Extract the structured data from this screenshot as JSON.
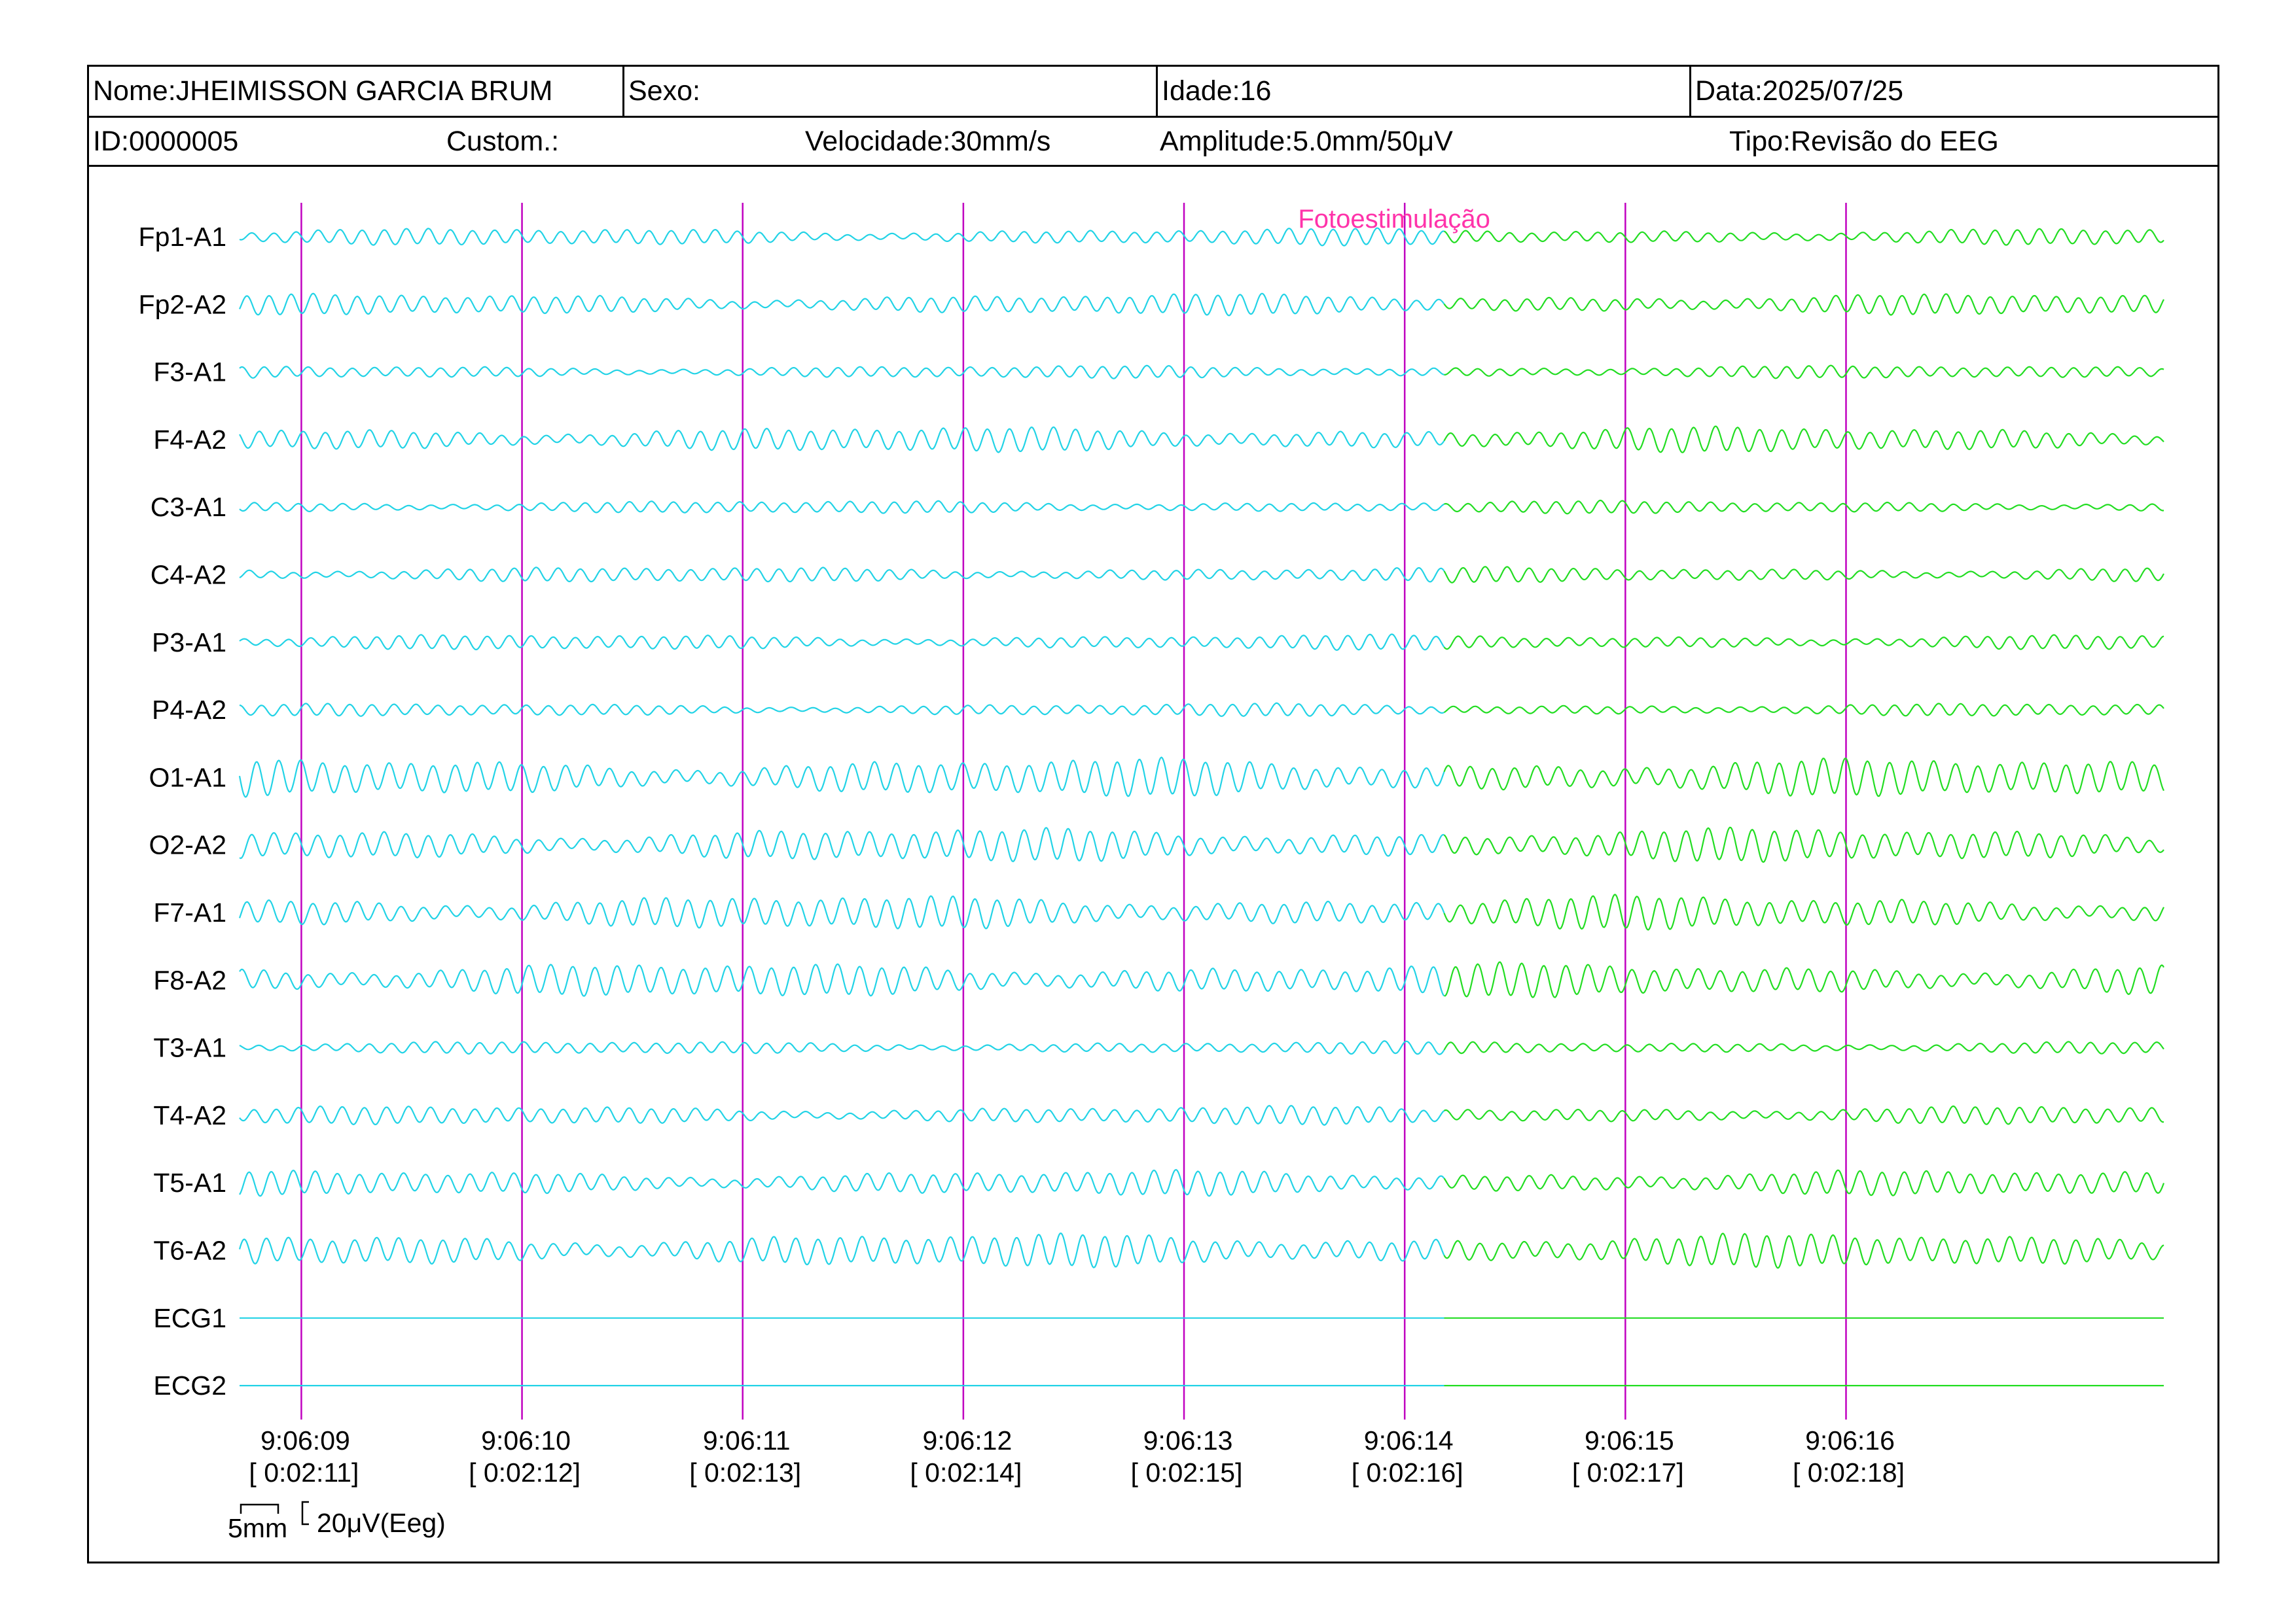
{
  "header": {
    "nome": "Nome:JHEIMISSON GARCIA BRUM",
    "sexo": "Sexo:",
    "idade": "Idade:16",
    "data": "Data:2025/07/25",
    "id": "ID:0000005",
    "custom": "Custom.:",
    "velocidade": "Velocidade:30mm/s",
    "amplitude": "Amplitude:5.0mm/50μV",
    "tipo": "Tipo:Revisão do EEG"
  },
  "colors": {
    "trace_before": "#22d3e6",
    "trace_after": "#22dd22",
    "marker_line": "#c000c0",
    "event_text": "#ff33aa",
    "frame": "#000000"
  },
  "chart_data": {
    "type": "line",
    "title": "",
    "xlabel": "",
    "ylabel": "",
    "channels": [
      "Fp1-A1",
      "Fp2-A2",
      "F3-A1",
      "F4-A2",
      "C3-A1",
      "C4-A2",
      "P3-A1",
      "P4-A2",
      "O1-A1",
      "O2-A2",
      "F7-A1",
      "F8-A2",
      "T3-A1",
      "T4-A2",
      "T5-A1",
      "T6-A2",
      "ECG1",
      "ECG2"
    ],
    "channel_amplitude_uv": [
      20,
      25,
      15,
      30,
      15,
      18,
      18,
      15,
      45,
      40,
      40,
      40,
      15,
      22,
      30,
      40,
      0,
      0
    ],
    "time_ticks": [
      {
        "clock": "9:06:09",
        "elapsed": "[ 0:02:11]",
        "t": 0
      },
      {
        "clock": "9:06:10",
        "elapsed": "[ 0:02:12]",
        "t": 1
      },
      {
        "clock": "9:06:11",
        "elapsed": "[ 0:02:13]",
        "t": 2
      },
      {
        "clock": "9:06:12",
        "elapsed": "[ 0:02:14]",
        "t": 3
      },
      {
        "clock": "9:06:13",
        "elapsed": "[ 0:02:15]",
        "t": 4
      },
      {
        "clock": "9:06:14",
        "elapsed": "[ 0:02:16]",
        "t": 5
      },
      {
        "clock": "9:06:15",
        "elapsed": "[ 0:02:17]",
        "t": 6
      },
      {
        "clock": "9:06:16",
        "elapsed": "[ 0:02:18]",
        "t": 7
      }
    ],
    "x_range_s": [
      -0.28,
      8.44
    ],
    "dominant_freq_hz": 10,
    "event": {
      "label": "Fotoestimulação",
      "t": 5.18
    },
    "scale_bar": {
      "time_label": "5mm",
      "amp_label": "20μV(Eeg)"
    }
  }
}
